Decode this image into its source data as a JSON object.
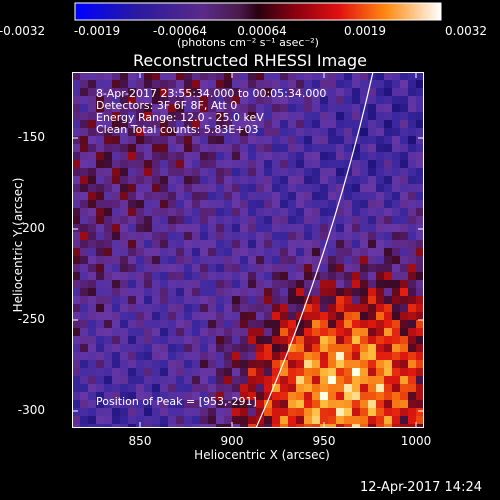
{
  "colorbar": {
    "tick_labels": [
      "-0.0032",
      "-0.0019",
      "-0.00064",
      "0.00064",
      "0.0019",
      "0.0032"
    ],
    "units": "(photons cm⁻² s⁻¹ asec⁻²)"
  },
  "title": "Reconstructed RHESSI Image",
  "info": {
    "time_range": "8-Apr-2017 23:55:34.000 to 00:05:34.000",
    "detectors": "Detectors: 3F 6F 8F, Att 0",
    "energy_range": "Energy Range: 12.0 - 25.0 keV",
    "clean": "Clean    Total counts: 5.83E+03"
  },
  "peak": "Position of Peak = [953,-291]",
  "xaxis": {
    "label": "Heliocentric X (arcsec)",
    "ticks": [
      "850",
      "900",
      "950",
      "1000"
    ]
  },
  "yaxis": {
    "label": "Heliocentric Y (arcsec)",
    "ticks": [
      "-150",
      "-200",
      "-250",
      "-300"
    ]
  },
  "timestamp": "12-Apr-2017 14:24",
  "colors": {
    "background": "#000000",
    "limb_line": "#ffffff"
  }
}
